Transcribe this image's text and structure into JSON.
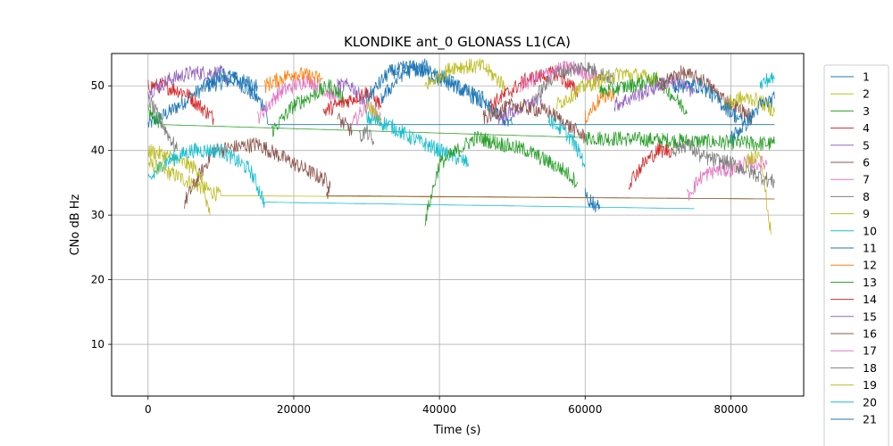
{
  "chart_data": {
    "type": "line",
    "title": "KLONDIKE ant_0 GLONASS L1(CA)",
    "xlabel": "Time (s)",
    "ylabel": "CNo dB Hz",
    "xlim": [
      -5000,
      90000
    ],
    "ylim": [
      2,
      55
    ],
    "xticks": [
      0,
      20000,
      40000,
      60000,
      80000
    ],
    "yticks": [
      10,
      20,
      30,
      40,
      50
    ],
    "grid": true,
    "legend_position": "right, outside plot",
    "colors": [
      "#1f77b4",
      "#bcbd22",
      "#2ca02c",
      "#d62728",
      "#9467bd",
      "#8c564b",
      "#e377c2",
      "#7f7f7f",
      "#bcbd22",
      "#17becf",
      "#1f77b4",
      "#ff7f0e",
      "#2ca02c",
      "#d62728",
      "#9467bd",
      "#8c564b",
      "#e377c2",
      "#7f7f7f",
      "#bcbd22",
      "#17becf",
      "#1f77b4"
    ],
    "series": [
      {
        "name": "1",
        "x": [
          0,
          3000,
          8000,
          12000,
          16000,
          16500,
          86000
        ],
        "y": [
          44,
          46,
          50,
          51,
          47,
          44,
          44
        ]
      },
      {
        "name": "2",
        "x": [
          0,
          10000,
          86000
        ],
        "y": [
          38,
          33,
          32.5
        ]
      },
      {
        "name": "3",
        "x": [
          0,
          2000,
          60000,
          86000
        ],
        "y": [
          46,
          44,
          42,
          41
        ]
      },
      {
        "name": "4",
        "x": [
          0,
          2000,
          5000,
          8000,
          9000
        ],
        "y": [
          50,
          50,
          49,
          46,
          45
        ]
      },
      {
        "name": "5",
        "x": [
          0,
          3000,
          6000,
          10000,
          11000
        ],
        "y": [
          49,
          51,
          52,
          52,
          51
        ]
      },
      {
        "name": "6",
        "x": [
          5000,
          7000,
          9000,
          15000,
          20000,
          25000,
          24500,
          86000
        ],
        "y": [
          32,
          36,
          40,
          41,
          38,
          35,
          33,
          32.5
        ]
      },
      {
        "name": "7",
        "x": [
          15000,
          18000,
          22000,
          26000
        ],
        "y": [
          45,
          49,
          51,
          48
        ]
      },
      {
        "name": "8",
        "x": [
          0,
          2000,
          4000
        ],
        "y": [
          48,
          44,
          40
        ]
      },
      {
        "name": "9",
        "x": [
          0,
          3000,
          7000,
          8500
        ],
        "y": [
          40,
          39,
          37,
          30
        ]
      },
      {
        "name": "10",
        "x": [
          0,
          2000,
          6000,
          10000,
          14000,
          16000,
          75000
        ],
        "y": [
          35,
          38,
          40,
          40,
          37,
          32,
          31
        ]
      },
      {
        "name": "11",
        "x": [
          8000,
          10000,
          12000,
          15000
        ],
        "y": [
          50,
          52,
          51,
          50
        ]
      },
      {
        "name": "12",
        "x": [
          16000,
          20000,
          24000
        ],
        "y": [
          50,
          52,
          51
        ]
      },
      {
        "name": "13",
        "x": [
          17000,
          20000,
          25000,
          27000
        ],
        "y": [
          43,
          47,
          50,
          48
        ]
      },
      {
        "name": "14",
        "x": [
          24000,
          28000,
          30000,
          32000
        ],
        "y": [
          46,
          48,
          49,
          47
        ]
      },
      {
        "name": "15",
        "x": [
          26000,
          28000,
          30000
        ],
        "y": [
          50,
          50,
          47
        ]
      },
      {
        "name": "16",
        "x": [
          26000,
          27000,
          28000
        ],
        "y": [
          45,
          44,
          43
        ]
      },
      {
        "name": "17",
        "x": [
          28000,
          30000,
          32000
        ],
        "y": [
          44,
          47,
          45
        ]
      },
      {
        "name": "18",
        "x": [
          29000,
          30000,
          31000
        ],
        "y": [
          42,
          43,
          41
        ]
      },
      {
        "name": "19",
        "x": [
          30000,
          31000,
          32000
        ],
        "y": [
          47,
          46,
          44
        ]
      },
      {
        "name": "20",
        "x": [
          30000,
          33000,
          36000,
          40000,
          44000
        ],
        "y": [
          45,
          44,
          42,
          40,
          38
        ]
      },
      {
        "name": "21",
        "x": [
          30000,
          33000,
          36000,
          40000,
          46000
        ],
        "y": [
          48,
          52,
          53,
          51,
          48
        ]
      },
      {
        "name": "",
        "x": [
          32000,
          35000,
          38000,
          41000,
          45000,
          50000
        ],
        "y": [
          48,
          52,
          53,
          51,
          48,
          44
        ]
      },
      {
        "name": "",
        "x": [
          38000,
          42000,
          46000,
          49000
        ],
        "y": [
          50,
          53,
          53,
          50
        ]
      },
      {
        "name": "",
        "x": [
          38000,
          40000,
          45000,
          52000,
          57000,
          59000
        ],
        "y": [
          29,
          38,
          42,
          40,
          37,
          35
        ]
      },
      {
        "name": "",
        "x": [
          47000,
          52000,
          56000,
          59000
        ],
        "y": [
          47,
          51,
          52,
          49
        ]
      },
      {
        "name": "",
        "x": [
          48000,
          52000,
          54000
        ],
        "y": [
          45,
          47,
          48
        ]
      },
      {
        "name": "",
        "x": [
          46000,
          50000,
          55000,
          60000
        ],
        "y": [
          45,
          47,
          46,
          42
        ]
      },
      {
        "name": "",
        "x": [
          51000,
          55000,
          58000,
          62000
        ],
        "y": [
          50,
          52,
          53,
          51
        ]
      },
      {
        "name": "",
        "x": [
          53000,
          56000,
          60000,
          64000
        ],
        "y": [
          48,
          52,
          53,
          51
        ]
      },
      {
        "name": "",
        "x": [
          56000,
          60000,
          65000,
          70000
        ],
        "y": [
          47,
          50,
          52,
          51
        ]
      },
      {
        "name": "",
        "x": [
          55000,
          58000,
          60000
        ],
        "y": [
          45,
          42,
          38
        ]
      },
      {
        "name": "",
        "x": [
          60000,
          62000
        ],
        "y": [
          33,
          31
        ]
      },
      {
        "name": "",
        "x": [
          60000,
          62000,
          64000
        ],
        "y": [
          45,
          48,
          49
        ]
      },
      {
        "name": "",
        "x": [
          62000,
          66000,
          70000,
          74000
        ],
        "y": [
          49,
          50,
          51,
          46
        ]
      },
      {
        "name": "",
        "x": [
          66000,
          68000,
          70000,
          72000
        ],
        "y": [
          35,
          38,
          40,
          40
        ]
      },
      {
        "name": "",
        "x": [
          64000,
          68000,
          72000,
          75000
        ],
        "y": [
          47,
          49,
          51,
          49
        ]
      },
      {
        "name": "",
        "x": [
          70000,
          73000,
          76000,
          79000,
          83000
        ],
        "y": [
          50,
          52,
          51,
          48,
          45
        ]
      },
      {
        "name": "",
        "x": [
          74000,
          76000,
          78000,
          80000,
          82000,
          85000
        ],
        "y": [
          33,
          36,
          37,
          37,
          38,
          38
        ]
      },
      {
        "name": "",
        "x": [
          72000,
          74000,
          76000,
          80000,
          84000,
          86000
        ],
        "y": [
          40,
          41,
          39,
          38,
          36,
          35
        ]
      },
      {
        "name": "",
        "x": [
          79000,
          81000,
          83000,
          85000,
          86000
        ],
        "y": [
          47,
          48,
          48,
          47,
          46
        ]
      },
      {
        "name": "",
        "x": [
          84000,
          85000,
          86000
        ],
        "y": [
          50,
          51,
          51
        ]
      },
      {
        "name": "",
        "x": [
          72000,
          76000,
          78000,
          80000,
          82000
        ],
        "y": [
          50,
          50,
          48,
          46,
          44
        ]
      },
      {
        "name": "",
        "x": [
          80000,
          82000,
          84000,
          86000
        ],
        "y": [
          42,
          44,
          47,
          48
        ]
      },
      {
        "name": "",
        "x": [
          82000,
          84000,
          85500
        ],
        "y": [
          38,
          40,
          27
        ]
      }
    ]
  }
}
